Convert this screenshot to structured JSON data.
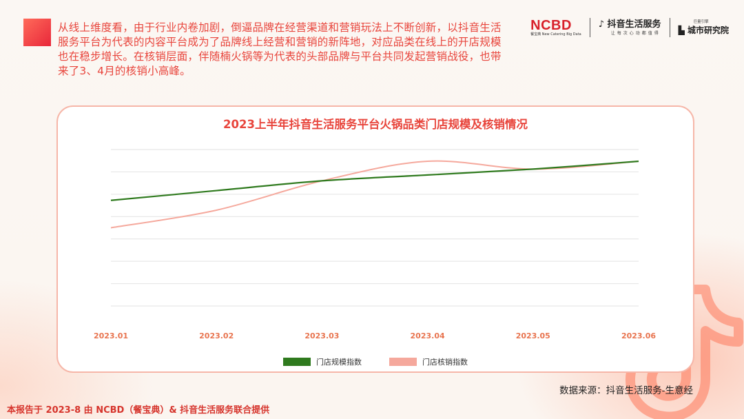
{
  "intro_text": "从线上维度看，由于行业内卷加剧，倒逼品牌在经营渠道和营销玩法上不断创新，以抖音生活服务平台为代表的内容平台成为了品牌线上经营和营销的新阵地，对应品类在线上的开店规模也在稳步增长。在核销层面，伴随楠火锅等为代表的头部品牌与平台共同发起营销战役，也带来了3、4月的核销小高峰。",
  "logos": {
    "ncbd": "NCBD",
    "ncbd_sub": "餐宝典  New Catering Big Data",
    "douyin": "抖音生活服务",
    "douyin_sub": "让每次心动都值得",
    "city": "城市研究院",
    "city_sub": "巨量引擎"
  },
  "colors": {
    "accent": "#e8453c",
    "series_scale": "#2f7a1e",
    "series_verify": "#f5a89c"
  },
  "chart_data": {
    "type": "line",
    "title": "2023上半年抖音生活服务平台火锅品类门店规模及核销情况",
    "categories": [
      "2023.01",
      "2023.02",
      "2023.03",
      "2023.04",
      "2023.05",
      "2023.06"
    ],
    "grid": true,
    "ylim": [
      0,
      8
    ],
    "series": [
      {
        "name": "门店规模指数",
        "color": "#2f7a1e",
        "values": [
          5.4,
          5.9,
          6.4,
          6.7,
          7.0,
          7.4
        ]
      },
      {
        "name": "门店核销指数",
        "color": "#f5a89c",
        "values": [
          4.0,
          4.9,
          6.4,
          7.4,
          7.0,
          7.4
        ]
      }
    ]
  },
  "source": "数据来源：抖音生活服务-生意经",
  "footer": "本报告于 2023-8 由 NCBD（餐宝典）& 抖音生活服务联合提供"
}
